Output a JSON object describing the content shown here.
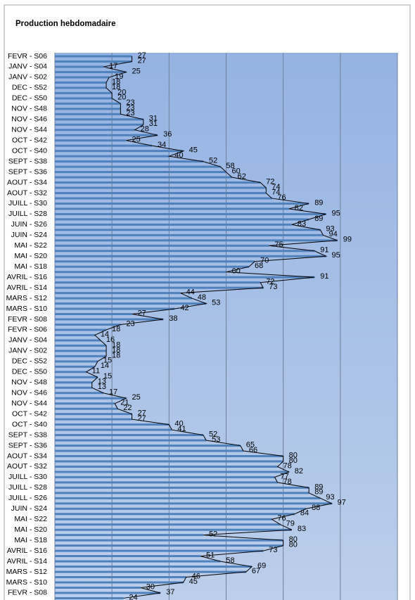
{
  "chart_data": {
    "type": "bar",
    "orientation": "horizontal",
    "title": "Production hebdomadaire",
    "categories": [
      "FEVR - S06",
      null,
      "JANV - S04",
      null,
      "JANV - S02",
      null,
      "DEC - S52",
      null,
      "DEC - S50",
      null,
      "NOV - S48",
      null,
      "NOV - S46",
      null,
      "NOV - S44",
      null,
      "OCT - S42",
      null,
      "OCT - S40",
      null,
      "SEPT - S38",
      null,
      "SEPT - S36",
      null,
      "AOUT - S34",
      null,
      "AOUT - S32",
      null,
      "JUILL - S30",
      null,
      "JUILL - S28",
      null,
      "JUIN - S26",
      null,
      "JUIN - S24",
      null,
      "MAI - S22",
      null,
      "MAI - S20",
      null,
      "MAI - S18",
      null,
      "AVRIL - S16",
      null,
      "AVRIL - S14",
      null,
      "MARS - S12",
      null,
      "MARS - S10",
      null,
      "FEVR - S08",
      null,
      "FEVR - S06",
      null,
      "JANV - S04",
      null,
      "JANV - S02",
      null,
      "DEC - S52",
      null,
      "DEC - S50",
      null,
      "NOV - S48",
      null,
      "NOV - S46",
      null,
      "NOV - S44",
      null,
      "OCT - S42",
      null,
      "OCT - S40",
      null,
      "SEPT - S38",
      null,
      "SEPT - S36",
      null,
      "AOUT - S34",
      null,
      "AOUT - S32",
      null,
      "JUILL - S30",
      null,
      "JUILL - S28",
      null,
      "JUILL - S26",
      null,
      "JUIN - S24",
      null,
      "MAI - S22",
      null,
      "MAI - S20",
      null,
      "MAI - S18",
      null,
      "AVRIL - S16",
      null,
      "AVRIL - S14",
      null,
      "MARS - S12",
      null,
      "MARS - S10",
      null,
      "FEVR - S08",
      null
    ],
    "values": [
      27,
      27,
      17,
      25,
      19,
      18,
      18,
      20,
      20,
      23,
      23,
      23,
      31,
      31,
      28,
      36,
      25,
      34,
      45,
      40,
      52,
      58,
      60,
      62,
      72,
      74,
      74,
      76,
      89,
      82,
      95,
      89,
      83,
      93,
      94,
      99,
      75,
      91,
      95,
      70,
      68,
      60,
      91,
      72,
      73,
      44,
      48,
      53,
      42,
      27,
      38,
      23,
      18,
      14,
      16,
      18,
      18,
      18,
      15,
      14,
      11,
      15,
      13,
      13,
      17,
      25,
      21,
      22,
      27,
      27,
      40,
      41,
      52,
      53,
      65,
      66,
      80,
      80,
      78,
      82,
      77,
      78,
      89,
      89,
      93,
      97,
      88,
      84,
      76,
      79,
      83,
      52,
      80,
      80,
      73,
      51,
      58,
      69,
      67,
      46,
      45,
      30,
      37,
      24
    ],
    "color": "#4f81bd",
    "line_color": "#000000",
    "xlim": [
      0,
      120
    ],
    "xticks": [
      0,
      20,
      40,
      60,
      80,
      100,
      120
    ],
    "grid": true
  }
}
